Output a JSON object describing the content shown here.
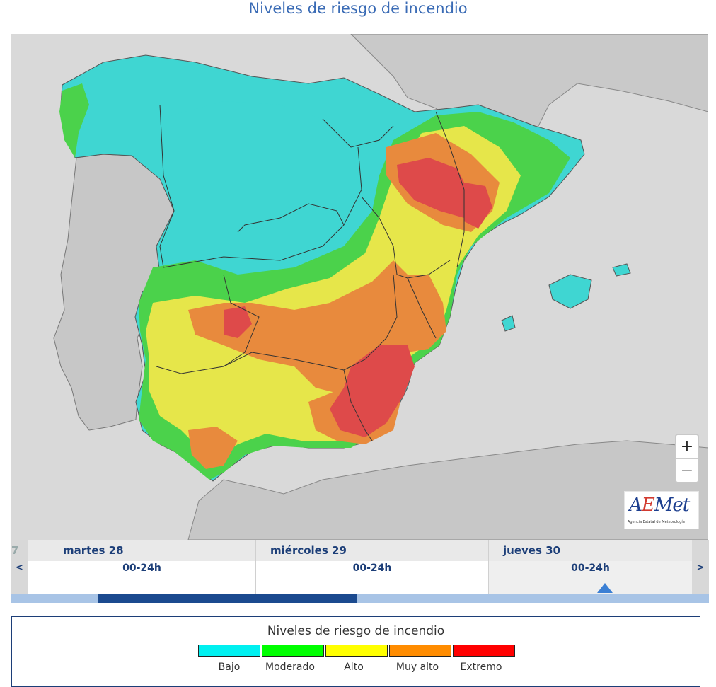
{
  "page": {
    "title": "Niveles de riesgo de incendio"
  },
  "map": {
    "zoom_in_label": "+",
    "zoom_out_label": "−",
    "logo": {
      "name_a": "A",
      "name_e": "E",
      "name_rest": "Met",
      "subtitle": "Agencia Estatal de Meteorología"
    },
    "colors": {
      "sea": "#d9d9d9",
      "land": "#c7c7c7",
      "bajo": "#3fd6d2",
      "moderado": "#4bd24b",
      "alto": "#e6e64a",
      "muy_alto": "#e88a3d",
      "extremo": "#de4a4a"
    }
  },
  "timeline": {
    "partial_prev_label": "7",
    "prev_arrow": "<",
    "next_arrow": ">",
    "days": [
      {
        "name": "martes 28",
        "range": "00-24h",
        "selected": false
      },
      {
        "name": "miércoles 29",
        "range": "00-24h",
        "selected": false
      },
      {
        "name": "jueves 30",
        "range": "00-24h",
        "selected": true
      }
    ]
  },
  "legend": {
    "title": "Niveles de riesgo de incendio",
    "items": [
      {
        "label": "Bajo",
        "color": "#00f0f0"
      },
      {
        "label": "Moderado",
        "color": "#00ff00"
      },
      {
        "label": "Alto",
        "color": "#ffff00"
      },
      {
        "label": "Muy alto",
        "color": "#ff8c00"
      },
      {
        "label": "Extremo",
        "color": "#ff0000"
      }
    ]
  }
}
